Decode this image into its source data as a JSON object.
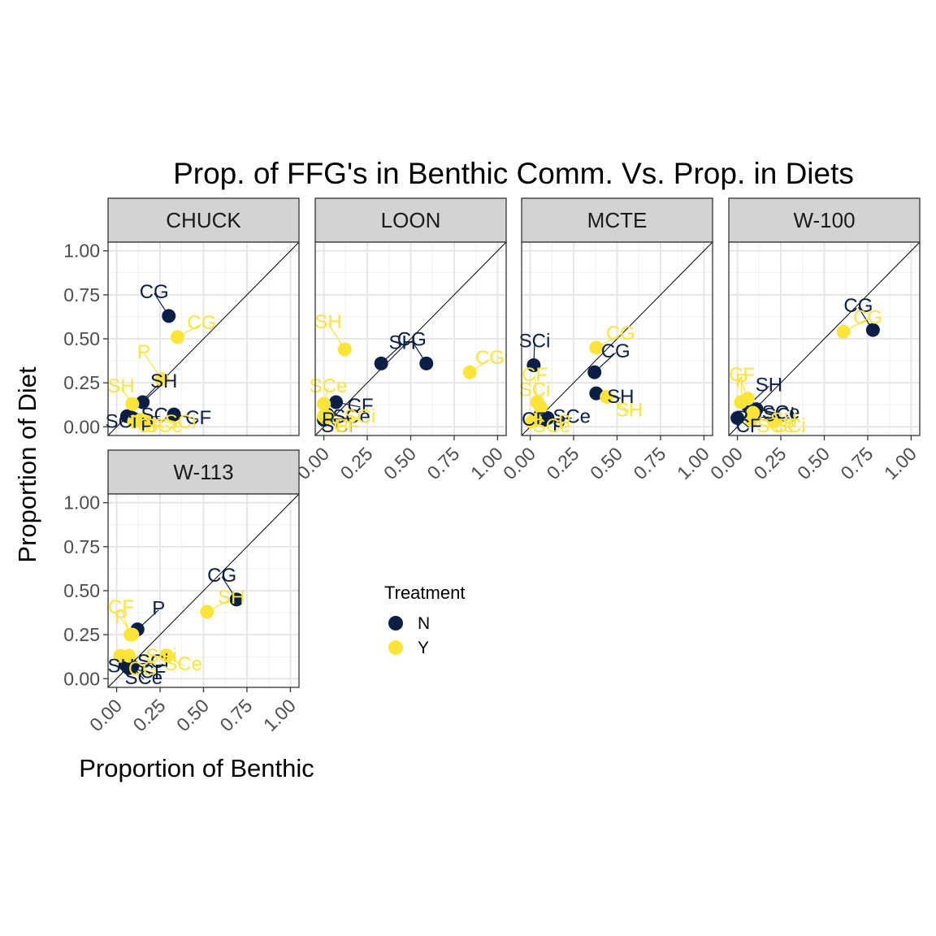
{
  "chart_data": {
    "type": "scatter",
    "title": "Prop. of FFG's in Benthic Comm. Vs. Prop. in Diets",
    "xlabel": "Proportion of Benthic",
    "ylabel": "Proportion of Diet",
    "xlim": [
      0,
      1
    ],
    "ylim": [
      0,
      1
    ],
    "x_ticks": [
      0,
      0.25,
      0.5,
      0.75,
      1
    ],
    "y_ticks": [
      0,
      0.25,
      0.5,
      0.75,
      1
    ],
    "x_tick_labels": [
      "0.00",
      "0.25",
      "0.50",
      "0.75",
      "1.00"
    ],
    "y_tick_labels": [
      "0.00",
      "0.25",
      "0.50",
      "0.75",
      "1.00"
    ],
    "reference_line": "y = x",
    "grid": true,
    "legend": {
      "title": "Treatment",
      "placement": "lower-middle",
      "entries": [
        {
          "key": "N",
          "label": "N",
          "color": "#0b1e45"
        },
        {
          "key": "Y",
          "label": "Y",
          "color": "#fde439"
        }
      ]
    },
    "facets": [
      {
        "name": "CHUCK",
        "points": [
          {
            "label": "CG",
            "treatment": "N",
            "x": 0.3,
            "y": 0.63
          },
          {
            "label": "SH",
            "treatment": "N",
            "x": 0.15,
            "y": 0.14
          },
          {
            "label": "CF",
            "treatment": "N",
            "x": 0.33,
            "y": 0.07
          },
          {
            "label": "SCi",
            "treatment": "N",
            "x": 0.06,
            "y": 0.06
          },
          {
            "label": "P",
            "treatment": "N",
            "x": 0.11,
            "y": 0.04
          },
          {
            "label": "SCe",
            "treatment": "N",
            "x": 0.09,
            "y": 0.05
          },
          {
            "label": "CG",
            "treatment": "Y",
            "x": 0.35,
            "y": 0.51
          },
          {
            "label": "P",
            "treatment": "Y",
            "x": 0.26,
            "y": 0.27
          },
          {
            "label": "SH",
            "treatment": "Y",
            "x": 0.09,
            "y": 0.13
          },
          {
            "label": "SCe",
            "treatment": "Y",
            "x": 0.14,
            "y": 0.04
          },
          {
            "label": "CF",
            "treatment": "Y",
            "x": 0.1,
            "y": 0.03
          },
          {
            "label": "SCi",
            "treatment": "Y",
            "x": 0.18,
            "y": 0.03
          }
        ]
      },
      {
        "name": "LOON",
        "points": [
          {
            "label": "CG",
            "treatment": "N",
            "x": 0.59,
            "y": 0.36
          },
          {
            "label": "SH",
            "treatment": "N",
            "x": 0.33,
            "y": 0.36
          },
          {
            "label": "CF",
            "treatment": "N",
            "x": 0.07,
            "y": 0.14
          },
          {
            "label": "P",
            "treatment": "N",
            "x": 0.02,
            "y": 0.07
          },
          {
            "label": "SCi",
            "treatment": "N",
            "x": 0.01,
            "y": 0.06
          },
          {
            "label": "SCe",
            "treatment": "N",
            "x": 0.0,
            "y": 0.04
          },
          {
            "label": "CG",
            "treatment": "Y",
            "x": 0.84,
            "y": 0.31
          },
          {
            "label": "SH",
            "treatment": "Y",
            "x": 0.12,
            "y": 0.44
          },
          {
            "label": "SCe",
            "treatment": "Y",
            "x": 0.0,
            "y": 0.13
          },
          {
            "label": "CF",
            "treatment": "Y",
            "x": 0.0,
            "y": 0.06
          },
          {
            "label": "P",
            "treatment": "Y",
            "x": 0.01,
            "y": 0.05
          },
          {
            "label": "SCi",
            "treatment": "Y",
            "x": 0.02,
            "y": 0.06
          }
        ]
      },
      {
        "name": "MCTE",
        "points": [
          {
            "label": "SCi",
            "treatment": "N",
            "x": 0.02,
            "y": 0.35
          },
          {
            "label": "CG",
            "treatment": "N",
            "x": 0.37,
            "y": 0.31
          },
          {
            "label": "SH",
            "treatment": "N",
            "x": 0.38,
            "y": 0.19
          },
          {
            "label": "CF",
            "treatment": "N",
            "x": 0.06,
            "y": 0.07
          },
          {
            "label": "P",
            "treatment": "N",
            "x": 0.1,
            "y": 0.05
          },
          {
            "label": "SCe",
            "treatment": "N",
            "x": 0.08,
            "y": 0.04
          },
          {
            "label": "CG",
            "treatment": "Y",
            "x": 0.38,
            "y": 0.45
          },
          {
            "label": "CF",
            "treatment": "Y",
            "x": 0.04,
            "y": 0.14
          },
          {
            "label": "SCi",
            "treatment": "Y",
            "x": 0.06,
            "y": 0.11
          },
          {
            "label": "SH",
            "treatment": "Y",
            "x": 0.44,
            "y": 0.17
          },
          {
            "label": "SCe",
            "treatment": "Y",
            "x": 0.03,
            "y": 0.04
          },
          {
            "label": "P",
            "treatment": "Y",
            "x": 0.01,
            "y": 0.03
          }
        ]
      },
      {
        "name": "W-100",
        "points": [
          {
            "label": "CG",
            "treatment": "N",
            "x": 0.78,
            "y": 0.55
          },
          {
            "label": "SH",
            "treatment": "N",
            "x": 0.06,
            "y": 0.12
          },
          {
            "label": "SCe",
            "treatment": "N",
            "x": 0.11,
            "y": 0.1
          },
          {
            "label": "P",
            "treatment": "N",
            "x": 0.1,
            "y": 0.08
          },
          {
            "label": "CF",
            "treatment": "N",
            "x": 0.0,
            "y": 0.05
          },
          {
            "label": "SCi",
            "treatment": "N",
            "x": 0.08,
            "y": 0.05
          },
          {
            "label": "CG",
            "treatment": "Y",
            "x": 0.61,
            "y": 0.54
          },
          {
            "label": "CF",
            "treatment": "Y",
            "x": 0.02,
            "y": 0.14
          },
          {
            "label": "P",
            "treatment": "Y",
            "x": 0.06,
            "y": 0.16
          },
          {
            "label": "SCe",
            "treatment": "Y",
            "x": 0.09,
            "y": 0.08
          },
          {
            "label": "SCi",
            "treatment": "Y",
            "x": 0.21,
            "y": 0.03
          },
          {
            "label": "SH",
            "treatment": "Y",
            "x": 0.08,
            "y": 0.04
          }
        ]
      },
      {
        "name": "W-113",
        "points": [
          {
            "label": "CG",
            "treatment": "N",
            "x": 0.69,
            "y": 0.45
          },
          {
            "label": "P",
            "treatment": "N",
            "x": 0.12,
            "y": 0.28
          },
          {
            "label": "CF",
            "treatment": "N",
            "x": 0.07,
            "y": 0.06
          },
          {
            "label": "SH",
            "treatment": "N",
            "x": 0.07,
            "y": 0.1
          },
          {
            "label": "SCe",
            "treatment": "N",
            "x": 0.09,
            "y": 0.07
          },
          {
            "label": "SCi",
            "treatment": "N",
            "x": 0.05,
            "y": 0.08
          },
          {
            "label": "SH",
            "treatment": "Y",
            "x": 0.52,
            "y": 0.38
          },
          {
            "label": "CF",
            "treatment": "Y",
            "x": 0.08,
            "y": 0.25
          },
          {
            "label": "P",
            "treatment": "Y",
            "x": 0.09,
            "y": 0.25
          },
          {
            "label": "CG",
            "treatment": "Y",
            "x": 0.02,
            "y": 0.13
          },
          {
            "label": "SCe",
            "treatment": "Y",
            "x": 0.29,
            "y": 0.13
          },
          {
            "label": "SCi",
            "treatment": "Y",
            "x": 0.07,
            "y": 0.13
          }
        ]
      }
    ]
  }
}
